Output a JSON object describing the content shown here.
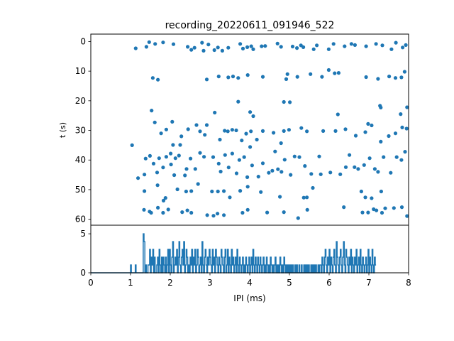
{
  "chart_data": [
    {
      "type": "scatter",
      "title": "recording_20220611_091946_522",
      "xlabel": "",
      "ylabel": "t (s)",
      "xlim": [
        0,
        8
      ],
      "ylim": [
        62,
        -2.5
      ],
      "y_inverted": true,
      "yticks": [
        "0",
        "10",
        "20",
        "30",
        "40",
        "50",
        "60"
      ],
      "grid": false,
      "marker_color": "#1f77b4",
      "points": [
        [
          1.13,
          2.3
        ],
        [
          1.4,
          1.8
        ],
        [
          1.47,
          0.2
        ],
        [
          1.62,
          0.8
        ],
        [
          1.82,
          0.3
        ],
        [
          2.08,
          0.9
        ],
        [
          2.44,
          1.8
        ],
        [
          2.53,
          2.8
        ],
        [
          2.61,
          2.1
        ],
        [
          2.8,
          0.4
        ],
        [
          2.84,
          3.1
        ],
        [
          2.96,
          1.0
        ],
        [
          3.11,
          2.9
        ],
        [
          3.2,
          2.0
        ],
        [
          3.31,
          3.1
        ],
        [
          3.46,
          2.1
        ],
        [
          3.76,
          0.8
        ],
        [
          3.83,
          2.4
        ],
        [
          3.94,
          1.9
        ],
        [
          4.04,
          1.6
        ],
        [
          4.09,
          2.6
        ],
        [
          4.3,
          1.6
        ],
        [
          4.39,
          1.5
        ],
        [
          4.7,
          0.7
        ],
        [
          4.79,
          1.8
        ],
        [
          5.08,
          1.7
        ],
        [
          5.19,
          2.2
        ],
        [
          5.29,
          1.3
        ],
        [
          5.35,
          1.9
        ],
        [
          5.61,
          2.6
        ],
        [
          5.69,
          1.3
        ],
        [
          5.99,
          2.6
        ],
        [
          6.11,
          0.8
        ],
        [
          6.39,
          1.6
        ],
        [
          6.56,
          0.8
        ],
        [
          6.65,
          1.2
        ],
        [
          6.93,
          1.6
        ],
        [
          7.18,
          0.8
        ],
        [
          7.34,
          1.3
        ],
        [
          7.57,
          2.6
        ],
        [
          7.68,
          0.4
        ],
        [
          7.85,
          2.0
        ],
        [
          7.93,
          1.2
        ],
        [
          1.56,
          12.3
        ],
        [
          1.69,
          12.9
        ],
        [
          2.92,
          12.8
        ],
        [
          3.22,
          11.8
        ],
        [
          3.46,
          12.1
        ],
        [
          3.58,
          11.8
        ],
        [
          3.71,
          12.3
        ],
        [
          3.95,
          11.3
        ],
        [
          4.33,
          11.9
        ],
        [
          4.92,
          12.7
        ],
        [
          4.95,
          11.0
        ],
        [
          5.2,
          11.9
        ],
        [
          5.53,
          11.0
        ],
        [
          5.82,
          11.9
        ],
        [
          5.99,
          9.6
        ],
        [
          6.14,
          10.7
        ],
        [
          6.24,
          10.6
        ],
        [
          6.93,
          12.0
        ],
        [
          7.23,
          12.6
        ],
        [
          7.51,
          11.8
        ],
        [
          7.67,
          12.3
        ],
        [
          7.82,
          12.1
        ],
        [
          7.9,
          10.2
        ],
        [
          1.53,
          23.3
        ],
        [
          3.12,
          24.0
        ],
        [
          3.71,
          20.3
        ],
        [
          4.01,
          23.8
        ],
        [
          4.09,
          25.2
        ],
        [
          4.86,
          20.4
        ],
        [
          5.01,
          20.5
        ],
        [
          6.22,
          24.6
        ],
        [
          7.28,
          21.7
        ],
        [
          7.3,
          22.3
        ],
        [
          7.8,
          24.5
        ],
        [
          7.96,
          22.2
        ],
        [
          1.61,
          27.3
        ],
        [
          1.77,
          31.0
        ],
        [
          1.9,
          29.7
        ],
        [
          2.05,
          27.1
        ],
        [
          2.07,
          34.9
        ],
        [
          2.28,
          32.0
        ],
        [
          2.45,
          29.6
        ],
        [
          2.66,
          28.2
        ],
        [
          2.75,
          30.3
        ],
        [
          2.87,
          31.5
        ],
        [
          2.92,
          28.2
        ],
        [
          3.25,
          33.1
        ],
        [
          3.37,
          30.1
        ],
        [
          3.45,
          30.3
        ],
        [
          3.56,
          29.8
        ],
        [
          3.66,
          30.0
        ],
        [
          3.8,
          33.4
        ],
        [
          3.91,
          31.1
        ],
        [
          4.03,
          30.3
        ],
        [
          4.18,
          33.1
        ],
        [
          4.33,
          30.2
        ],
        [
          4.6,
          30.8
        ],
        [
          4.79,
          34.3
        ],
        [
          4.86,
          30.2
        ],
        [
          4.99,
          29.8
        ],
        [
          5.3,
          29.2
        ],
        [
          5.44,
          30.3
        ],
        [
          5.85,
          30.2
        ],
        [
          6.16,
          30.2
        ],
        [
          6.41,
          29.6
        ],
        [
          6.67,
          31.8
        ],
        [
          6.91,
          30.6
        ],
        [
          6.98,
          27.8
        ],
        [
          7.07,
          28.3
        ],
        [
          7.3,
          33.8
        ],
        [
          7.5,
          31.9
        ],
        [
          7.67,
          31.0
        ],
        [
          7.84,
          29.0
        ],
        [
          7.95,
          29.4
        ],
        [
          1.04,
          35.0
        ],
        [
          1.19,
          46.1
        ],
        [
          1.35,
          44.9
        ],
        [
          1.38,
          39.5
        ],
        [
          1.49,
          38.6
        ],
        [
          1.58,
          41.2
        ],
        [
          1.67,
          44.2
        ],
        [
          1.72,
          39.4
        ],
        [
          1.82,
          42.5
        ],
        [
          1.9,
          38.9
        ],
        [
          2.01,
          37.8
        ],
        [
          2.02,
          41.5
        ],
        [
          2.1,
          45.1
        ],
        [
          2.13,
          39.4
        ],
        [
          2.22,
          38.5
        ],
        [
          2.25,
          34.9
        ],
        [
          2.37,
          45.2
        ],
        [
          2.41,
          43.0
        ],
        [
          2.51,
          39.5
        ],
        [
          2.63,
          43.0
        ],
        [
          2.75,
          37.6
        ],
        [
          2.85,
          38.9
        ],
        [
          3.08,
          39.0
        ],
        [
          3.22,
          41.2
        ],
        [
          3.27,
          43.9
        ],
        [
          3.38,
          38.3
        ],
        [
          3.47,
          42.5
        ],
        [
          3.56,
          37.8
        ],
        [
          3.67,
          44.5
        ],
        [
          3.74,
          40.0
        ],
        [
          3.86,
          39.0
        ],
        [
          3.94,
          45.8
        ],
        [
          4.01,
          35.6
        ],
        [
          4.06,
          41.8
        ],
        [
          4.22,
          45.6
        ],
        [
          4.33,
          41.1
        ],
        [
          4.48,
          44.3
        ],
        [
          4.57,
          43.6
        ],
        [
          4.64,
          37.1
        ],
        [
          4.71,
          43.1
        ],
        [
          4.8,
          44.0
        ],
        [
          4.88,
          39.9
        ],
        [
          5.03,
          45.0
        ],
        [
          5.13,
          38.8
        ],
        [
          5.25,
          39.0
        ],
        [
          5.39,
          42.0
        ],
        [
          5.55,
          44.7
        ],
        [
          5.75,
          38.8
        ],
        [
          5.79,
          44.8
        ],
        [
          6.03,
          44.2
        ],
        [
          6.28,
          44.8
        ],
        [
          6.42,
          42.4
        ],
        [
          6.51,
          38.3
        ],
        [
          6.64,
          42.4
        ],
        [
          6.73,
          43.0
        ],
        [
          6.88,
          41.7
        ],
        [
          7.02,
          39.4
        ],
        [
          7.15,
          43.0
        ],
        [
          7.23,
          44.0
        ],
        [
          7.37,
          39.0
        ],
        [
          7.55,
          44.3
        ],
        [
          7.7,
          39.0
        ],
        [
          7.82,
          40.0
        ],
        [
          7.91,
          37.2
        ],
        [
          1.35,
          50.5
        ],
        [
          1.68,
          48.5
        ],
        [
          1.83,
          53.7
        ],
        [
          1.88,
          52.8
        ],
        [
          2.18,
          49.9
        ],
        [
          2.4,
          50.6
        ],
        [
          2.53,
          50.5
        ],
        [
          2.7,
          48.1
        ],
        [
          3.05,
          50.6
        ],
        [
          3.2,
          50.6
        ],
        [
          3.35,
          50.5
        ],
        [
          3.5,
          52.6
        ],
        [
          3.76,
          50.4
        ],
        [
          3.95,
          49.0
        ],
        [
          4.28,
          50.8
        ],
        [
          4.76,
          52.4
        ],
        [
          5.36,
          52.7
        ],
        [
          5.44,
          52.6
        ],
        [
          5.59,
          49.4
        ],
        [
          6.81,
          50.6
        ],
        [
          6.91,
          52.6
        ],
        [
          7.07,
          52.9
        ],
        [
          7.31,
          50.6
        ],
        [
          1.34,
          56.8
        ],
        [
          1.48,
          57.4
        ],
        [
          1.52,
          57.8
        ],
        [
          1.69,
          56.1
        ],
        [
          1.82,
          57.8
        ],
        [
          1.95,
          56.7
        ],
        [
          2.3,
          57.6
        ],
        [
          2.43,
          57.0
        ],
        [
          2.53,
          57.8
        ],
        [
          2.93,
          58.6
        ],
        [
          3.09,
          58.8
        ],
        [
          3.19,
          58.1
        ],
        [
          3.35,
          58.6
        ],
        [
          3.82,
          57.8
        ],
        [
          3.95,
          56.8
        ],
        [
          4.44,
          57.7
        ],
        [
          4.86,
          57.6
        ],
        [
          5.22,
          59.6
        ],
        [
          5.45,
          56.8
        ],
        [
          6.37,
          55.9
        ],
        [
          6.84,
          57.7
        ],
        [
          6.98,
          57.7
        ],
        [
          7.12,
          56.6
        ],
        [
          7.19,
          57.0
        ],
        [
          7.33,
          57.8
        ],
        [
          7.41,
          56.3
        ],
        [
          7.63,
          56.2
        ],
        [
          7.83,
          55.9
        ],
        [
          7.96,
          58.9
        ]
      ]
    },
    {
      "type": "line",
      "xlabel": "IPI (ms)",
      "ylabel": "",
      "xlim": [
        0,
        8
      ],
      "ylim": [
        0,
        6.1
      ],
      "xticks": [
        "0",
        "1",
        "2",
        "3",
        "4",
        "5",
        "6",
        "7",
        "8"
      ],
      "yticks": [
        "0",
        "5"
      ],
      "grid": false,
      "line_color": "#1f77b4",
      "x_start": 0,
      "x_step": 0.02,
      "values": [
        0,
        0,
        0,
        0,
        0,
        0,
        0,
        0,
        0,
        0,
        0,
        0,
        0,
        0,
        0,
        0,
        0,
        0,
        0,
        0,
        0,
        0,
        0,
        0,
        0,
        0,
        0,
        0,
        0,
        0,
        0,
        0,
        0,
        0,
        0,
        0,
        0,
        0,
        0,
        0,
        0,
        0,
        0,
        0,
        0,
        0,
        0,
        0,
        0,
        0,
        1,
        0,
        0,
        0,
        0,
        0,
        1,
        0,
        0,
        0,
        0,
        0,
        0,
        0,
        0,
        0,
        5,
        4,
        0,
        1,
        0,
        0,
        1,
        1,
        3,
        0,
        2,
        1,
        3,
        0,
        2,
        0,
        0,
        1,
        2,
        0,
        3,
        1,
        0,
        2,
        0,
        2,
        1,
        0,
        2,
        0,
        1,
        3,
        0,
        3,
        1,
        0,
        2,
        4,
        0,
        1,
        2,
        1,
        3,
        0,
        2,
        4,
        1,
        0,
        2,
        3,
        1,
        4,
        0,
        1,
        3,
        2,
        0,
        1,
        0,
        2,
        1,
        3,
        0,
        2,
        1,
        3,
        0,
        1,
        3,
        2,
        0,
        1,
        2,
        0,
        4,
        1,
        0,
        2,
        3,
        1,
        0,
        2,
        1,
        3,
        2,
        1,
        0,
        3,
        1,
        2,
        0,
        3,
        2,
        1,
        0,
        2,
        1,
        0,
        3,
        2,
        1,
        0,
        2,
        3,
        0,
        1,
        3,
        0,
        2,
        1,
        0,
        3,
        1,
        2,
        0,
        1,
        2,
        0,
        3,
        1,
        0,
        2,
        1,
        0,
        1,
        2,
        0,
        1,
        0,
        2,
        1,
        0,
        1,
        2,
        0,
        1,
        2,
        0,
        3,
        1,
        0,
        2,
        1,
        0,
        2,
        1,
        0,
        2,
        1,
        0,
        1,
        2,
        0,
        1,
        0,
        2,
        1,
        0,
        1,
        0,
        2,
        1,
        0,
        1,
        0,
        1,
        2,
        0,
        1,
        0,
        1,
        0,
        2,
        1,
        0,
        1,
        0,
        2,
        1,
        0,
        1,
        0,
        1,
        0,
        1,
        0,
        1,
        0,
        1,
        0,
        0,
        1,
        0,
        1,
        0,
        0,
        1,
        0,
        0,
        1,
        0,
        0,
        1,
        0,
        1,
        0,
        1,
        0,
        1,
        0,
        0,
        1,
        0,
        1,
        0,
        1,
        0,
        1,
        0,
        0,
        1,
        0,
        1,
        1,
        0,
        2,
        1,
        0,
        2,
        3,
        1,
        0,
        2,
        1,
        3,
        0,
        2,
        1,
        0,
        2,
        3,
        1,
        0,
        4,
        2,
        1,
        0,
        2,
        3,
        1,
        0,
        2,
        4,
        1,
        0,
        3,
        2,
        1,
        0,
        2,
        1,
        3,
        0,
        2,
        1,
        0,
        2,
        1,
        3,
        0,
        1,
        2,
        0,
        3,
        1,
        0,
        2,
        1,
        0,
        1,
        2,
        0,
        1,
        3,
        0,
        2,
        1,
        0,
        3,
        1,
        0,
        2,
        1
      ]
    }
  ]
}
